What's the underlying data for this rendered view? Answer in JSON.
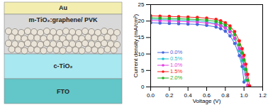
{
  "diagram": {
    "layers": [
      {
        "label": "Au",
        "color": "#f3eeb0"
      },
      {
        "label": "m-TiO₂:graphene/ PVK",
        "color": "#d9d9d9"
      },
      {
        "label": "c-TiO₂",
        "color": "#a8e8f0"
      },
      {
        "label": "FTO",
        "color": "#63c6c8"
      }
    ]
  },
  "chart_data": {
    "type": "line",
    "x_label": "Voltage (V)",
    "y_label": "Current density (mA/cm²)",
    "xlim": [
      0,
      1.2
    ],
    "xticks": [
      {
        "value": 0,
        "label": "0.0"
      },
      {
        "value": 0.2,
        "label": "0.2"
      },
      {
        "value": 0.4,
        "label": "0.4"
      },
      {
        "value": 0.6,
        "label": "0.6"
      },
      {
        "value": 0.8,
        "label": "0.8"
      },
      {
        "value": 1,
        "label": "1.0"
      },
      {
        "value": 1.2,
        "label": "1.2"
      }
    ],
    "ylim": [
      0,
      25
    ],
    "yticks": [
      0,
      5,
      10,
      15,
      20,
      25
    ],
    "legend": "lower left",
    "marker": "circle",
    "x": [
      0,
      0.1,
      0.2,
      0.3,
      0.4,
      0.5,
      0.6,
      0.7,
      0.75,
      0.8,
      0.85,
      0.9,
      0.95,
      0.98,
      1.0,
      1.02,
      1.04,
      1.06
    ],
    "series": [
      {
        "name": "0.0%",
        "color": "#4466dd",
        "values": [
          19.5,
          19.4,
          19.3,
          19.2,
          19.1,
          19.0,
          18.7,
          18.2,
          17.7,
          16.9,
          15.5,
          13.2,
          9.5,
          6.2,
          1.5,
          null,
          null,
          null
        ]
      },
      {
        "name": "0.5%",
        "color": "#17bfd0",
        "values": [
          20.6,
          20.5,
          20.4,
          20.3,
          20.2,
          20.1,
          19.8,
          19.3,
          18.9,
          18.1,
          16.8,
          14.6,
          11.0,
          8.0,
          5.5,
          2.0,
          null,
          null
        ]
      },
      {
        "name": "1.0%",
        "color": "#e040e0",
        "values": [
          20.2,
          20.1,
          20.0,
          19.9,
          19.8,
          19.7,
          19.4,
          19.0,
          18.6,
          17.9,
          16.7,
          14.8,
          11.6,
          9.0,
          6.8,
          3.8,
          0.5,
          null
        ]
      },
      {
        "name": "1.5%",
        "color": "#ff1a1a",
        "values": [
          21.6,
          21.5,
          21.4,
          21.3,
          21.2,
          21.1,
          20.9,
          20.5,
          20.1,
          19.5,
          18.5,
          16.8,
          14.0,
          11.6,
          9.6,
          6.9,
          3.8,
          0.3
        ]
      },
      {
        "name": "2.0%",
        "color": "#22b022",
        "values": [
          21.0,
          20.9,
          20.8,
          20.7,
          20.6,
          20.5,
          20.3,
          19.9,
          19.5,
          18.8,
          17.7,
          15.9,
          12.8,
          10.3,
          8.2,
          5.3,
          2.0,
          null
        ]
      }
    ]
  }
}
